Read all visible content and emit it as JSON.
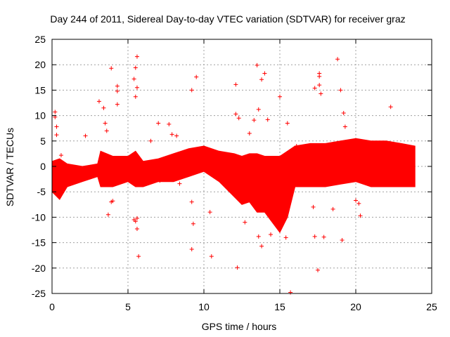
{
  "chart_data": {
    "type": "scatter",
    "title": "Day 244 of 2011, Sidereal Day-to-day VTEC variation (SDTVAR) for receiver graz",
    "xlabel": "GPS time / hours",
    "ylabel": "SDTVAR / TECUs",
    "xlim": [
      0,
      25
    ],
    "ylim": [
      -25,
      25
    ],
    "xticks": [
      0,
      5,
      10,
      15,
      20,
      25
    ],
    "yticks": [
      -25,
      -20,
      -15,
      -10,
      -5,
      0,
      5,
      10,
      15,
      20,
      25
    ],
    "xtick_labels": [
      "0",
      "5",
      "10",
      "15",
      "20",
      "25"
    ],
    "ytick_labels": [
      "-25",
      "-20",
      "-15",
      "-10",
      "-5",
      "0",
      "5",
      "10",
      "15",
      "20",
      "25"
    ],
    "grid": true,
    "legend": "none",
    "marker": "+",
    "color": "#ff0000",
    "band": {
      "name": "dense SDTVAR band (envelope)",
      "x": [
        0,
        0.5,
        1,
        2,
        3,
        3.2,
        4,
        5,
        5.5,
        6,
        7,
        8,
        9,
        10,
        11,
        12,
        12.5,
        13,
        13.5,
        14,
        15,
        15.5,
        16,
        17,
        18,
        19,
        20,
        21,
        22,
        23,
        23.9
      ],
      "upper": [
        1,
        1.5,
        0.5,
        0,
        0.5,
        3,
        2,
        2,
        3,
        1,
        1.5,
        2.5,
        3.5,
        4,
        3,
        2.5,
        2,
        2.5,
        2.5,
        2,
        2,
        3,
        4,
        4.5,
        4.5,
        5,
        5.5,
        5,
        5,
        4.5,
        4
      ],
      "lower": [
        -5,
        -6.5,
        -4,
        -3,
        -2,
        -4,
        -4,
        -3,
        -4,
        -4,
        -3,
        -3,
        -2,
        -1,
        -3,
        -6,
        -7.5,
        -7,
        -9,
        -9,
        -13,
        -10,
        -4,
        -4,
        -4,
        -3.5,
        -3,
        -4,
        -4,
        -4,
        -4
      ]
    },
    "outliers": [
      {
        "x": 0.2,
        "y": 10.7
      },
      {
        "x": 0.2,
        "y": 9.7
      },
      {
        "x": 0.3,
        "y": 7.8
      },
      {
        "x": 0.3,
        "y": 6.2
      },
      {
        "x": 0.6,
        "y": 2.2
      },
      {
        "x": 2.2,
        "y": 6.0
      },
      {
        "x": 3.1,
        "y": 12.8
      },
      {
        "x": 3.4,
        "y": 11.5
      },
      {
        "x": 3.5,
        "y": 8.5
      },
      {
        "x": 3.6,
        "y": 7.0
      },
      {
        "x": 3.9,
        "y": 19.3
      },
      {
        "x": 4.3,
        "y": 15.8
      },
      {
        "x": 4.3,
        "y": 14.8
      },
      {
        "x": 4.3,
        "y": 12.2
      },
      {
        "x": 3.7,
        "y": -9.5
      },
      {
        "x": 3.9,
        "y": -7.0
      },
      {
        "x": 4.0,
        "y": -6.8
      },
      {
        "x": 5.5,
        "y": 19.4
      },
      {
        "x": 5.6,
        "y": 21.6
      },
      {
        "x": 5.4,
        "y": 17.2
      },
      {
        "x": 5.6,
        "y": 15.5
      },
      {
        "x": 5.5,
        "y": 13.7
      },
      {
        "x": 5.4,
        "y": -10.5
      },
      {
        "x": 5.5,
        "y": -10.8
      },
      {
        "x": 5.6,
        "y": -10.2
      },
      {
        "x": 5.6,
        "y": -12.3
      },
      {
        "x": 5.7,
        "y": -17.7
      },
      {
        "x": 6.5,
        "y": 5.0
      },
      {
        "x": 7.0,
        "y": 8.5
      },
      {
        "x": 7.1,
        "y": -2.8
      },
      {
        "x": 7.7,
        "y": 8.3
      },
      {
        "x": 7.9,
        "y": 6.3
      },
      {
        "x": 8.2,
        "y": 6.0
      },
      {
        "x": 8.4,
        "y": -3.4
      },
      {
        "x": 9.2,
        "y": 15.0
      },
      {
        "x": 9.5,
        "y": 17.6
      },
      {
        "x": 9.2,
        "y": -7.0
      },
      {
        "x": 9.3,
        "y": -11.3
      },
      {
        "x": 9.2,
        "y": -16.3
      },
      {
        "x": 10.2,
        "y": 0.8
      },
      {
        "x": 10.4,
        "y": -9.0
      },
      {
        "x": 10.5,
        "y": -17.7
      },
      {
        "x": 12.1,
        "y": 16.1
      },
      {
        "x": 12.1,
        "y": 10.3
      },
      {
        "x": 12.3,
        "y": 9.5
      },
      {
        "x": 12.2,
        "y": -19.9
      },
      {
        "x": 12.7,
        "y": -11.0
      },
      {
        "x": 13.0,
        "y": 6.5
      },
      {
        "x": 13.3,
        "y": 9.1
      },
      {
        "x": 13.6,
        "y": 11.2
      },
      {
        "x": 13.5,
        "y": 19.9
      },
      {
        "x": 13.8,
        "y": 17.1
      },
      {
        "x": 14.0,
        "y": 18.3
      },
      {
        "x": 14.2,
        "y": 9.2
      },
      {
        "x": 13.6,
        "y": -13.8
      },
      {
        "x": 13.8,
        "y": -15.7
      },
      {
        "x": 14.4,
        "y": -13.4
      },
      {
        "x": 15.0,
        "y": 13.7
      },
      {
        "x": 15.5,
        "y": 8.5
      },
      {
        "x": 15.7,
        "y": -24.8
      },
      {
        "x": 15.4,
        "y": -14.0
      },
      {
        "x": 16.1,
        "y": 4.0
      },
      {
        "x": 17.3,
        "y": 15.4
      },
      {
        "x": 17.6,
        "y": 17.7
      },
      {
        "x": 17.6,
        "y": 16.0
      },
      {
        "x": 17.7,
        "y": 14.3
      },
      {
        "x": 17.6,
        "y": 18.3
      },
      {
        "x": 17.3,
        "y": -13.8
      },
      {
        "x": 17.5,
        "y": -20.4
      },
      {
        "x": 17.9,
        "y": -13.9
      },
      {
        "x": 17.2,
        "y": -8.0
      },
      {
        "x": 18.5,
        "y": -8.4
      },
      {
        "x": 18.8,
        "y": 21.1
      },
      {
        "x": 19.0,
        "y": 15.0
      },
      {
        "x": 19.2,
        "y": 10.5
      },
      {
        "x": 19.3,
        "y": 7.8
      },
      {
        "x": 19.1,
        "y": -14.5
      },
      {
        "x": 20.0,
        "y": -6.7
      },
      {
        "x": 20.2,
        "y": -7.3
      },
      {
        "x": 20.3,
        "y": -9.7
      },
      {
        "x": 22.3,
        "y": 11.7
      },
      {
        "x": 21.9,
        "y": -3.0
      }
    ]
  }
}
